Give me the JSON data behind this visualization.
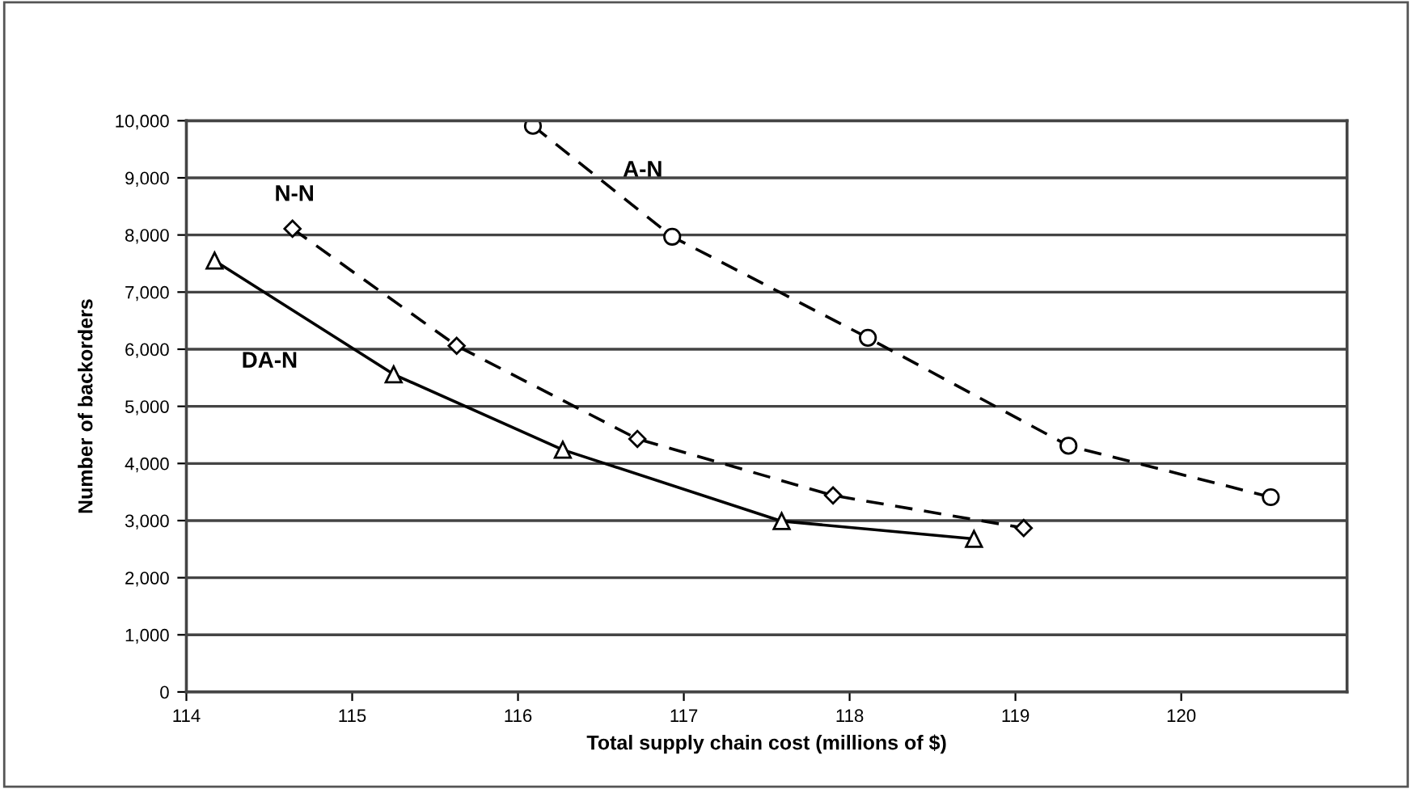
{
  "chart_data": {
    "type": "line",
    "xlabel": "Total supply chain cost (millions of $)",
    "ylabel": "Number of backorders",
    "xlim": [
      114,
      121
    ],
    "xticks": [
      114,
      115,
      116,
      117,
      118,
      119,
      120
    ],
    "ylim": [
      0,
      10000
    ],
    "yticks": [
      {
        "value": 0,
        "label": "0"
      },
      {
        "value": 1000,
        "label": "1,000"
      },
      {
        "value": 2000,
        "label": "2,000"
      },
      {
        "value": 3000,
        "label": "3,000"
      },
      {
        "value": 4000,
        "label": "4,000"
      },
      {
        "value": 5000,
        "label": "5,000"
      },
      {
        "value": 6000,
        "label": "6,000"
      },
      {
        "value": 7000,
        "label": "7,000"
      },
      {
        "value": 8000,
        "label": "8,000"
      },
      {
        "value": 9000,
        "label": "9,000"
      },
      {
        "value": 10000,
        "label": "10,000"
      }
    ],
    "grid": "y",
    "series": [
      {
        "name": "DA-N",
        "color": "#000000",
        "marker": "triangle",
        "line_style": "solid",
        "x": [
          114.17,
          115.25,
          116.27,
          117.59,
          118.75
        ],
        "values": [
          7550,
          5560,
          4240,
          2990,
          2680
        ]
      },
      {
        "name": "N-N",
        "color": "#000000",
        "marker": "diamond",
        "line_style": "dashed",
        "x": [
          114.64,
          115.63,
          116.72,
          117.9,
          119.05
        ],
        "values": [
          8110,
          6060,
          4430,
          3440,
          2870
        ]
      },
      {
        "name": "A-N",
        "color": "#000000",
        "marker": "circle",
        "line_style": "dashed",
        "x": [
          116.09,
          116.93,
          118.11,
          119.32,
          120.54
        ],
        "values": [
          9910,
          7970,
          6200,
          4310,
          3410
        ]
      }
    ]
  }
}
